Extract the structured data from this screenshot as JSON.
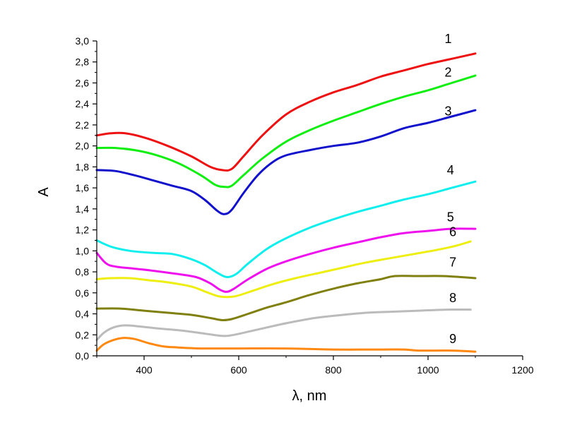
{
  "chart_data": {
    "type": "line",
    "title": "",
    "xlabel": "λ, nm",
    "ylabel": "A",
    "xlim": [
      300,
      1200
    ],
    "ylim": [
      0,
      3.0
    ],
    "x_major_ticks": [
      400,
      600,
      800,
      1000,
      1200
    ],
    "x_tick_labels": [
      "400",
      "600",
      "800",
      "1000",
      "1200"
    ],
    "y_major_ticks": [
      0,
      0.2,
      0.4,
      0.6,
      0.8,
      1.0,
      1.2,
      1.4,
      1.6,
      1.8,
      2.0,
      2.2,
      2.4,
      2.6,
      2.8,
      3.0
    ],
    "y_tick_labels": [
      "0,0",
      "0,2",
      "0,4",
      "0,6",
      "0,8",
      "1,0",
      "1,2",
      "1,4",
      "1,6",
      "1,8",
      "2,0",
      "2,2",
      "2,4",
      "2,6",
      "2,8",
      "3,0"
    ],
    "grid": false,
    "series": [
      {
        "name": "1",
        "color": "#ee1111",
        "label_at": [
          1035,
          2.98
        ],
        "points": [
          [
            300,
            2.1
          ],
          [
            330,
            2.12
          ],
          [
            360,
            2.12
          ],
          [
            400,
            2.08
          ],
          [
            450,
            2.0
          ],
          [
            500,
            1.9
          ],
          [
            540,
            1.8
          ],
          [
            565,
            1.77
          ],
          [
            585,
            1.78
          ],
          [
            610,
            1.9
          ],
          [
            650,
            2.1
          ],
          [
            700,
            2.3
          ],
          [
            750,
            2.42
          ],
          [
            800,
            2.51
          ],
          [
            850,
            2.58
          ],
          [
            900,
            2.66
          ],
          [
            950,
            2.72
          ],
          [
            1000,
            2.78
          ],
          [
            1050,
            2.83
          ],
          [
            1100,
            2.88
          ]
        ]
      },
      {
        "name": "2",
        "color": "#11ee11",
        "label_at": [
          1035,
          2.66
        ],
        "points": [
          [
            300,
            1.98
          ],
          [
            340,
            1.98
          ],
          [
            380,
            1.96
          ],
          [
            420,
            1.92
          ],
          [
            470,
            1.84
          ],
          [
            520,
            1.72
          ],
          [
            550,
            1.63
          ],
          [
            568,
            1.61
          ],
          [
            585,
            1.62
          ],
          [
            610,
            1.72
          ],
          [
            650,
            1.88
          ],
          [
            700,
            2.04
          ],
          [
            750,
            2.15
          ],
          [
            800,
            2.24
          ],
          [
            850,
            2.32
          ],
          [
            900,
            2.4
          ],
          [
            950,
            2.47
          ],
          [
            1000,
            2.53
          ],
          [
            1050,
            2.6
          ],
          [
            1100,
            2.67
          ]
        ]
      },
      {
        "name": "3",
        "color": "#1111cc",
        "label_at": [
          1035,
          2.29
        ],
        "points": [
          [
            300,
            1.77
          ],
          [
            340,
            1.76
          ],
          [
            380,
            1.72
          ],
          [
            420,
            1.67
          ],
          [
            460,
            1.62
          ],
          [
            500,
            1.57
          ],
          [
            530,
            1.48
          ],
          [
            555,
            1.38
          ],
          [
            570,
            1.35
          ],
          [
            585,
            1.39
          ],
          [
            610,
            1.55
          ],
          [
            640,
            1.72
          ],
          [
            670,
            1.84
          ],
          [
            700,
            1.91
          ],
          [
            750,
            1.96
          ],
          [
            800,
            2.0
          ],
          [
            850,
            2.03
          ],
          [
            900,
            2.09
          ],
          [
            950,
            2.17
          ],
          [
            1000,
            2.22
          ],
          [
            1050,
            2.28
          ],
          [
            1100,
            2.34
          ]
        ]
      },
      {
        "name": "4",
        "color": "#11eeee",
        "label_at": [
          1040,
          1.73
        ],
        "points": [
          [
            300,
            1.1
          ],
          [
            330,
            1.04
          ],
          [
            370,
            1.0
          ],
          [
            420,
            0.98
          ],
          [
            460,
            0.97
          ],
          [
            500,
            0.92
          ],
          [
            530,
            0.86
          ],
          [
            555,
            0.79
          ],
          [
            575,
            0.75
          ],
          [
            595,
            0.78
          ],
          [
            620,
            0.88
          ],
          [
            660,
            1.02
          ],
          [
            700,
            1.12
          ],
          [
            750,
            1.22
          ],
          [
            800,
            1.3
          ],
          [
            850,
            1.37
          ],
          [
            900,
            1.43
          ],
          [
            950,
            1.49
          ],
          [
            1000,
            1.54
          ],
          [
            1050,
            1.6
          ],
          [
            1100,
            1.66
          ]
        ]
      },
      {
        "name": "5",
        "color": "#ee11ee",
        "label_at": [
          1040,
          1.28
        ],
        "points": [
          [
            300,
            0.98
          ],
          [
            320,
            0.88
          ],
          [
            340,
            0.85
          ],
          [
            380,
            0.83
          ],
          [
            420,
            0.81
          ],
          [
            470,
            0.78
          ],
          [
            510,
            0.75
          ],
          [
            540,
            0.69
          ],
          [
            560,
            0.63
          ],
          [
            575,
            0.61
          ],
          [
            590,
            0.64
          ],
          [
            620,
            0.73
          ],
          [
            660,
            0.83
          ],
          [
            700,
            0.9
          ],
          [
            750,
            0.97
          ],
          [
            800,
            1.03
          ],
          [
            850,
            1.08
          ],
          [
            900,
            1.13
          ],
          [
            950,
            1.17
          ],
          [
            1000,
            1.19
          ],
          [
            1050,
            1.21
          ],
          [
            1100,
            1.21
          ]
        ]
      },
      {
        "name": "6",
        "color": "#eeee11",
        "label_at": [
          1045,
          1.14
        ],
        "points": [
          [
            300,
            0.73
          ],
          [
            330,
            0.74
          ],
          [
            370,
            0.74
          ],
          [
            410,
            0.72
          ],
          [
            450,
            0.7
          ],
          [
            500,
            0.66
          ],
          [
            530,
            0.61
          ],
          [
            555,
            0.57
          ],
          [
            575,
            0.56
          ],
          [
            595,
            0.57
          ],
          [
            630,
            0.62
          ],
          [
            670,
            0.68
          ],
          [
            720,
            0.74
          ],
          [
            770,
            0.79
          ],
          [
            820,
            0.84
          ],
          [
            870,
            0.89
          ],
          [
            920,
            0.93
          ],
          [
            970,
            0.97
          ],
          [
            1020,
            1.01
          ],
          [
            1060,
            1.05
          ],
          [
            1090,
            1.09
          ]
        ]
      },
      {
        "name": "7",
        "color": "#808011",
        "label_at": [
          1045,
          0.85
        ],
        "points": [
          [
            300,
            0.45
          ],
          [
            350,
            0.45
          ],
          [
            400,
            0.43
          ],
          [
            450,
            0.41
          ],
          [
            500,
            0.39
          ],
          [
            540,
            0.36
          ],
          [
            565,
            0.34
          ],
          [
            585,
            0.35
          ],
          [
            620,
            0.4
          ],
          [
            660,
            0.46
          ],
          [
            700,
            0.51
          ],
          [
            750,
            0.58
          ],
          [
            800,
            0.64
          ],
          [
            850,
            0.69
          ],
          [
            900,
            0.73
          ],
          [
            930,
            0.76
          ],
          [
            980,
            0.76
          ],
          [
            1030,
            0.76
          ],
          [
            1070,
            0.75
          ],
          [
            1100,
            0.74
          ]
        ]
      },
      {
        "name": "8",
        "color": "#bbbbbb",
        "label_at": [
          1045,
          0.51
        ],
        "points": [
          [
            300,
            0.15
          ],
          [
            315,
            0.22
          ],
          [
            335,
            0.27
          ],
          [
            360,
            0.29
          ],
          [
            390,
            0.28
          ],
          [
            430,
            0.26
          ],
          [
            480,
            0.24
          ],
          [
            530,
            0.21
          ],
          [
            565,
            0.19
          ],
          [
            590,
            0.2
          ],
          [
            640,
            0.25
          ],
          [
            700,
            0.31
          ],
          [
            760,
            0.36
          ],
          [
            820,
            0.39
          ],
          [
            870,
            0.41
          ],
          [
            920,
            0.42
          ],
          [
            980,
            0.43
          ],
          [
            1040,
            0.44
          ],
          [
            1090,
            0.44
          ]
        ]
      },
      {
        "name": "9",
        "color": "#ff8811",
        "label_at": [
          1045,
          0.12
        ],
        "points": [
          [
            300,
            0.05
          ],
          [
            315,
            0.11
          ],
          [
            335,
            0.15
          ],
          [
            355,
            0.17
          ],
          [
            380,
            0.16
          ],
          [
            410,
            0.12
          ],
          [
            440,
            0.09
          ],
          [
            470,
            0.08
          ],
          [
            520,
            0.07
          ],
          [
            600,
            0.07
          ],
          [
            700,
            0.07
          ],
          [
            800,
            0.06
          ],
          [
            900,
            0.06
          ],
          [
            950,
            0.06
          ],
          [
            980,
            0.05
          ],
          [
            1050,
            0.05
          ],
          [
            1100,
            0.04
          ]
        ]
      }
    ]
  }
}
